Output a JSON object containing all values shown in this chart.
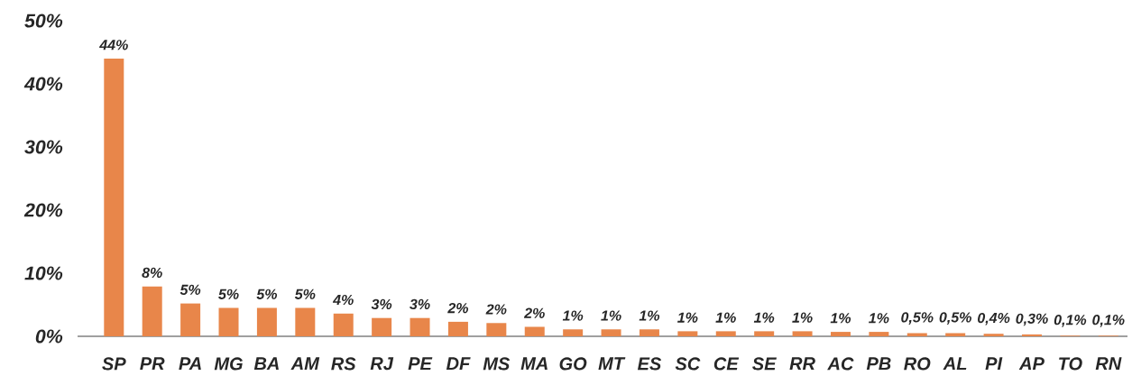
{
  "chart_data": {
    "type": "bar",
    "categories": [
      "SP",
      "PR",
      "PA",
      "MG",
      "BA",
      "AM",
      "RS",
      "RJ",
      "PE",
      "DF",
      "MS",
      "MA",
      "GO",
      "MT",
      "ES",
      "SC",
      "CE",
      "SE",
      "RR",
      "AC",
      "PB",
      "RO",
      "AL",
      "PI",
      "AP",
      "TO",
      "RN"
    ],
    "values": [
      44,
      7.9,
      5.2,
      4.5,
      4.5,
      4.5,
      3.6,
      2.9,
      2.9,
      2.3,
      2.1,
      1.5,
      1.1,
      1.1,
      1.1,
      0.8,
      0.8,
      0.8,
      0.8,
      0.7,
      0.7,
      0.5,
      0.5,
      0.4,
      0.3,
      0.1,
      0.1
    ],
    "value_labels": [
      "44%",
      "8%",
      "5%",
      "5%",
      "5%",
      "5%",
      "4%",
      "3%",
      "3%",
      "2%",
      "2%",
      "2%",
      "1%",
      "1%",
      "1%",
      "1%",
      "1%",
      "1%",
      "1%",
      "1%",
      "1%",
      "0,5%",
      "0,5%",
      "0,4%",
      "0,3%",
      "0,1%",
      "0,1%"
    ],
    "color": "#e8864a",
    "ylim": [
      0,
      50
    ],
    "yticks": [
      {
        "value": 0,
        "label": "0%"
      },
      {
        "value": 10,
        "label": "10%"
      },
      {
        "value": 20,
        "label": "20%"
      },
      {
        "value": 30,
        "label": "30%"
      },
      {
        "value": 40,
        "label": "40%"
      },
      {
        "value": 50,
        "label": "50%"
      }
    ]
  }
}
